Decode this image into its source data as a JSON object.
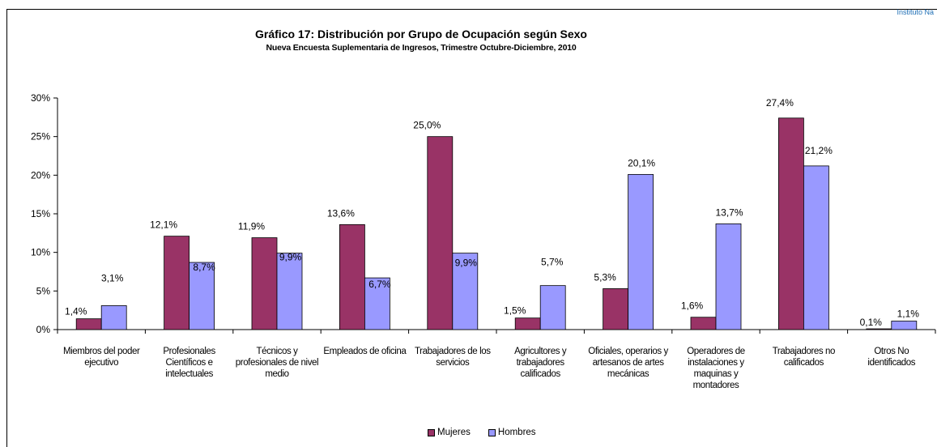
{
  "header": {
    "corner_text": "Instituto Na"
  },
  "chart_data": {
    "type": "bar",
    "title": "Gráfico 17: Distribución por Grupo de Ocupación según Sexo",
    "subtitle": "Nueva Encuesta Suplementaria de Ingresos, Trimestre Octubre-Diciembre, 2010",
    "categories": [
      "Miembros del poder ejecutivo",
      "Profesionales Científicos e intelectuales",
      "Técnicos y profesionales de nivel medio",
      "Empleados de oficina",
      "Trabajadores de los servicios",
      "Agricultores y trabajadores calificados",
      "Oficiales, operarios y artesanos de artes mecánicas",
      "Operadores de instalaciones y maquinas y montadores",
      "Trabajadores no calificados",
      "Otros No identificados"
    ],
    "series": [
      {
        "name": "Mujeres",
        "color": "#993366",
        "values": [
          1.4,
          12.1,
          11.9,
          13.6,
          25.0,
          1.5,
          5.3,
          1.6,
          27.4,
          0.1
        ],
        "labels": [
          "1,4%",
          "12,1%",
          "11,9%",
          "13,6%",
          "25,0%",
          "1,5%",
          "5,3%",
          "1,6%",
          "27,4%",
          "0,1%"
        ]
      },
      {
        "name": "Hombres",
        "color": "#9999FF",
        "values": [
          3.1,
          8.7,
          9.9,
          6.7,
          9.9,
          5.7,
          20.1,
          13.7,
          21.2,
          1.1
        ],
        "labels": [
          "3,1%",
          "8,7%",
          "9,9%",
          "6,7%",
          "9,9%",
          "5,7%",
          "20,1%",
          "13,7%",
          "21,2%",
          "1,1%"
        ]
      }
    ],
    "yticks": [
      "0%",
      "5%",
      "10%",
      "15%",
      "20%",
      "25%",
      "30%"
    ],
    "ylim": [
      0,
      30
    ],
    "grid": false,
    "legend_position": "bottom"
  }
}
